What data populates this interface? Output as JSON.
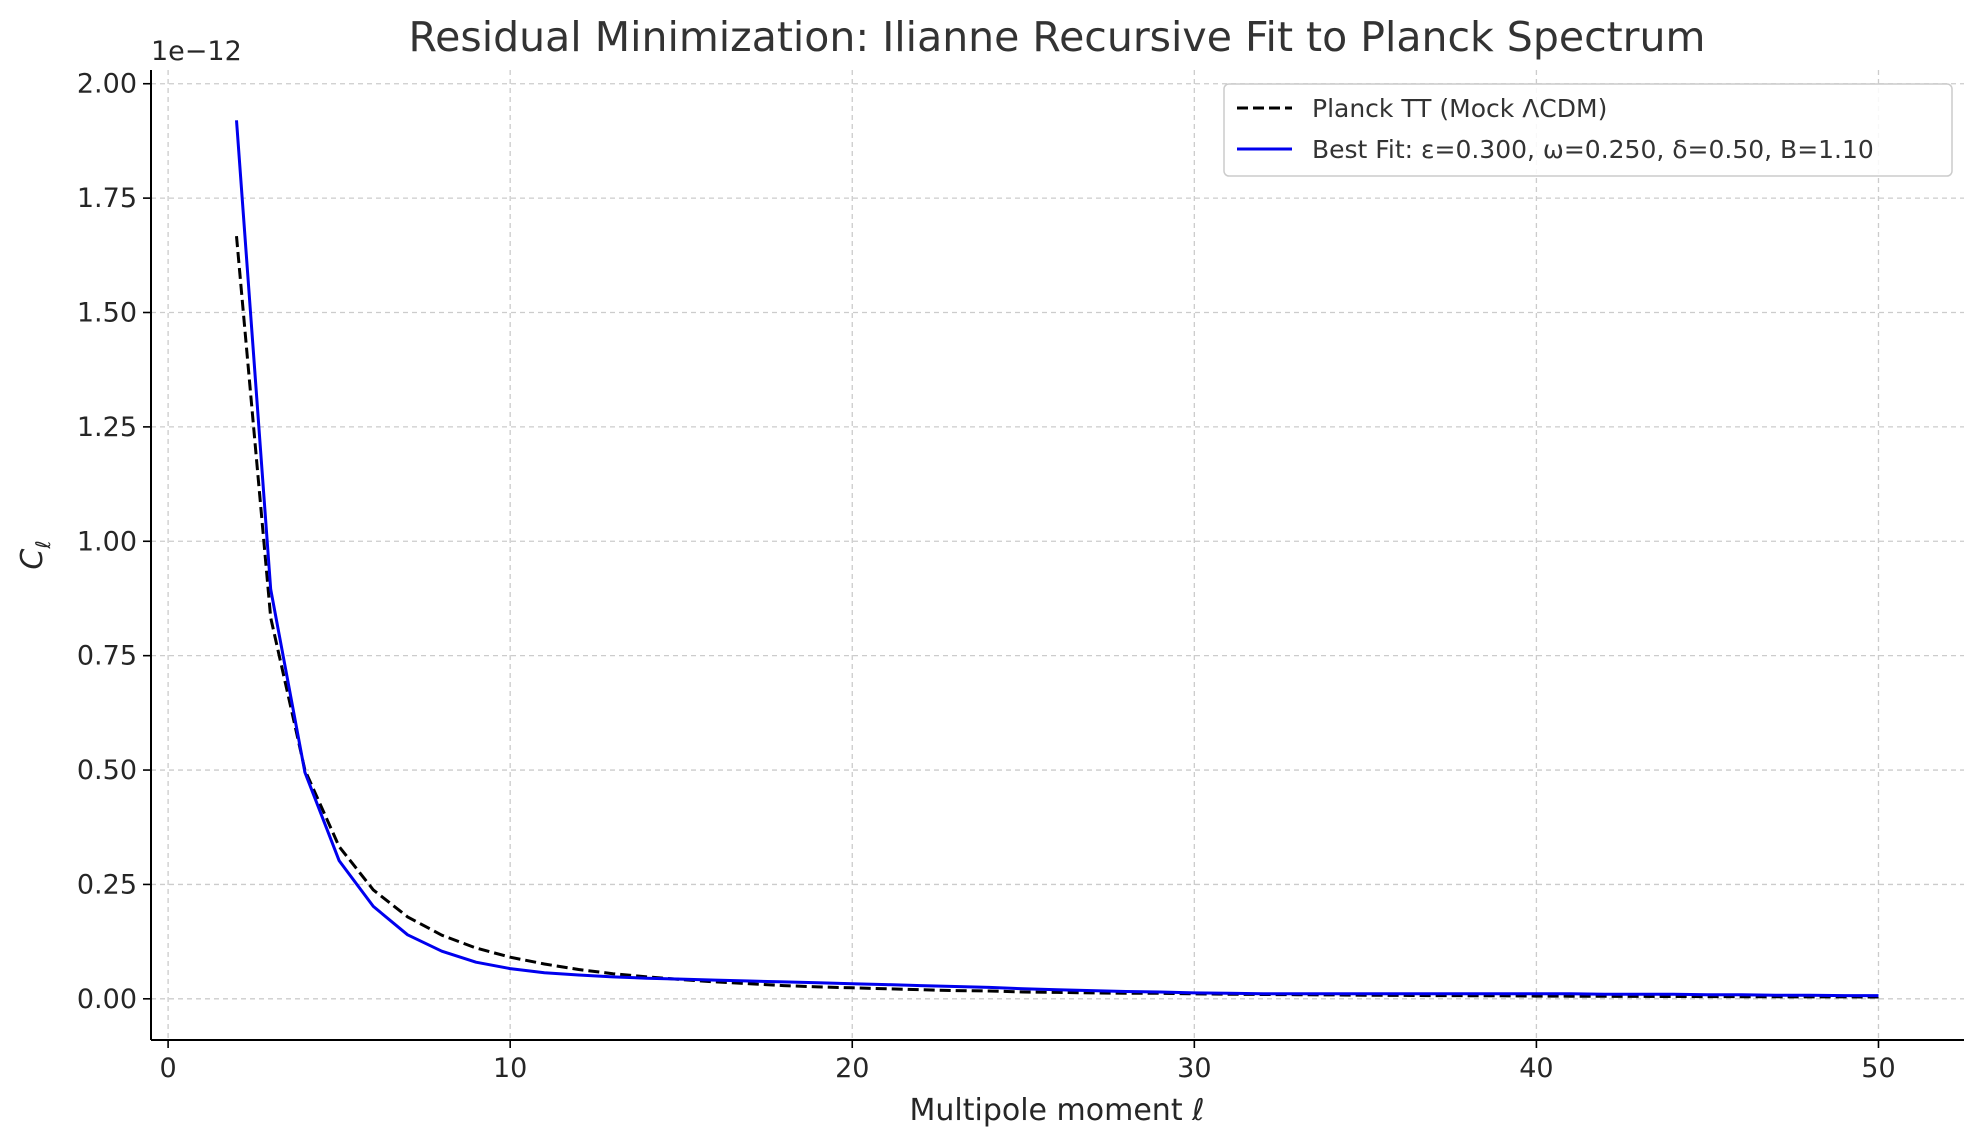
{
  "chart_data": {
    "type": "line",
    "title": "Residual Minimization: Ilianne Recursive Fit to Planck Spectrum",
    "xlabel": "Multipole moment ℓ",
    "ylabel": "C",
    "ylabel_subscript": "ℓ",
    "y_offset_label": "1e−12",
    "xlim": [
      -0.5,
      52.5
    ],
    "ylim": [
      -0.09,
      2.03
    ],
    "x_ticks": [
      0,
      10,
      20,
      30,
      40,
      50
    ],
    "x_tick_labels": [
      "0",
      "10",
      "20",
      "30",
      "40",
      "50"
    ],
    "y_ticks": [
      0,
      0.25,
      0.5,
      0.75,
      1.0,
      1.25,
      1.5,
      1.75,
      2.0
    ],
    "y_tick_labels": [
      "0.00",
      "0.25",
      "0.50",
      "0.75",
      "1.00",
      "1.25",
      "1.50",
      "1.75",
      "2.00"
    ],
    "grid": true,
    "legend_position": "top-right",
    "series": [
      {
        "name": "Planck TT (Mock ΛCDM)",
        "color": "#000000",
        "dash": "dashed",
        "x": [
          2,
          3,
          4,
          5,
          6,
          7,
          8,
          9,
          10,
          11,
          12,
          13,
          14,
          15,
          16,
          17,
          18,
          19,
          20,
          21,
          22,
          23,
          24,
          25,
          26,
          27,
          28,
          29,
          30,
          31,
          32,
          33,
          34,
          35,
          36,
          37,
          38,
          39,
          40,
          41,
          42,
          43,
          44,
          45,
          46,
          47,
          48,
          49,
          50
        ],
        "y": [
          1.667,
          0.833,
          0.5,
          0.333,
          0.238,
          0.179,
          0.139,
          0.111,
          0.091,
          0.076,
          0.064,
          0.055,
          0.048,
          0.042,
          0.037,
          0.033,
          0.029,
          0.026,
          0.024,
          0.022,
          0.02,
          0.018,
          0.017,
          0.015,
          0.014,
          0.013,
          0.012,
          0.012,
          0.011,
          0.01,
          0.0095,
          0.009,
          0.0085,
          0.008,
          0.0075,
          0.007,
          0.0068,
          0.0065,
          0.006,
          0.0058,
          0.0055,
          0.0053,
          0.005,
          0.0048,
          0.0046,
          0.0044,
          0.0042,
          0.0041,
          0.004
        ]
      },
      {
        "name": "Best Fit: ε=0.300, ω=0.250, δ=0.50, B=1.10",
        "color": "#0000ee",
        "dash": "solid",
        "x": [
          2,
          3,
          4,
          5,
          6,
          7,
          8,
          9,
          10,
          11,
          12,
          13,
          14,
          15,
          16,
          17,
          18,
          19,
          20,
          21,
          22,
          23,
          24,
          25,
          26,
          27,
          28,
          29,
          30,
          31,
          32,
          33,
          34,
          35,
          36,
          37,
          38,
          39,
          40,
          41,
          42,
          43,
          44,
          45,
          46,
          47,
          48,
          49,
          50
        ],
        "y": [
          1.92,
          0.895,
          0.495,
          0.302,
          0.202,
          0.14,
          0.104,
          0.08,
          0.066,
          0.057,
          0.052,
          0.048,
          0.045,
          0.043,
          0.041,
          0.039,
          0.037,
          0.035,
          0.033,
          0.031,
          0.029,
          0.027,
          0.025,
          0.022,
          0.02,
          0.018,
          0.016,
          0.015,
          0.013,
          0.012,
          0.011,
          0.011,
          0.011,
          0.011,
          0.011,
          0.011,
          0.011,
          0.011,
          0.011,
          0.011,
          0.01,
          0.01,
          0.01,
          0.009,
          0.009,
          0.008,
          0.008,
          0.007,
          0.007
        ]
      }
    ]
  }
}
